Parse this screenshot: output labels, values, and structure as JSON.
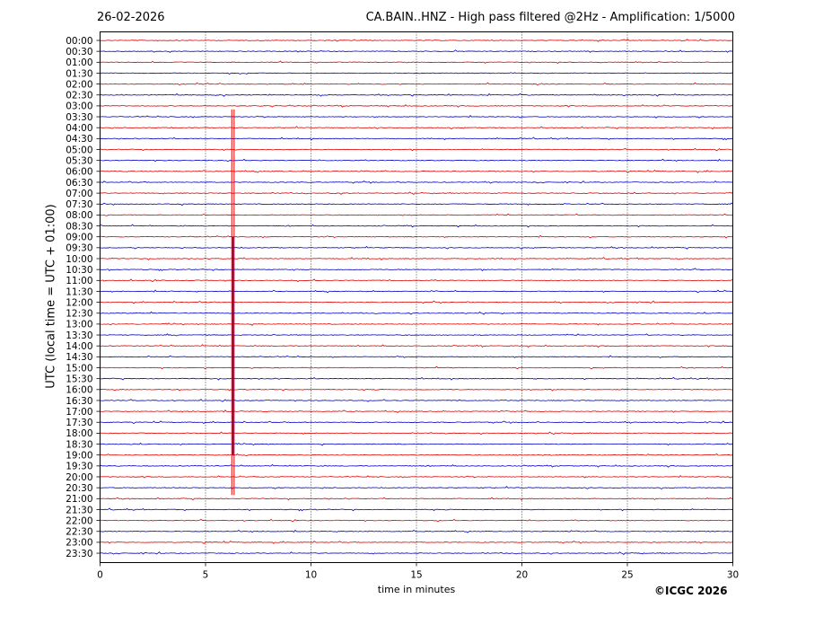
{
  "header": {
    "date": "26-02-2026",
    "title": "CA.BAIN..HNZ - High pass filtered @2Hz - Amplification: 1/5000"
  },
  "footer": {
    "copyright": "©ICGC 2026"
  },
  "chart_data": {
    "type": "line",
    "title": "CA.BAIN..HNZ - High pass filtered @2Hz - Amplification: 1/5000",
    "xlabel": "time in minutes",
    "ylabel": "UTC (local time = UTC + 01:00)",
    "xlim": [
      0,
      30
    ],
    "x_ticks": [
      "0",
      "5",
      "10",
      "15",
      "20",
      "25",
      "30"
    ],
    "y_ticks": [
      "00:00",
      "00:30",
      "01:00",
      "01:30",
      "02:00",
      "02:30",
      "03:00",
      "03:30",
      "04:00",
      "04:30",
      "05:00",
      "05:30",
      "06:00",
      "06:30",
      "07:00",
      "07:30",
      "08:00",
      "08:30",
      "09:00",
      "09:30",
      "10:00",
      "10:30",
      "11:00",
      "11:30",
      "12:00",
      "12:30",
      "13:00",
      "13:30",
      "14:00",
      "14:30",
      "15:00",
      "15:30",
      "16:00",
      "16:30",
      "17:00",
      "17:30",
      "18:00",
      "18:30",
      "19:00",
      "19:30",
      "20:00",
      "20:30",
      "21:00",
      "21:30",
      "22:00",
      "22:30",
      "23:00",
      "23:30"
    ],
    "trace_colors": [
      "#e00000",
      "#0000c8"
    ],
    "vertical_gridlines_at": [
      5,
      10,
      15,
      20,
      25
    ],
    "grid": "dotted vertical",
    "event": {
      "start_trace": "03:00",
      "end_trace": "21:00",
      "x_minute": 6.3
    }
  }
}
